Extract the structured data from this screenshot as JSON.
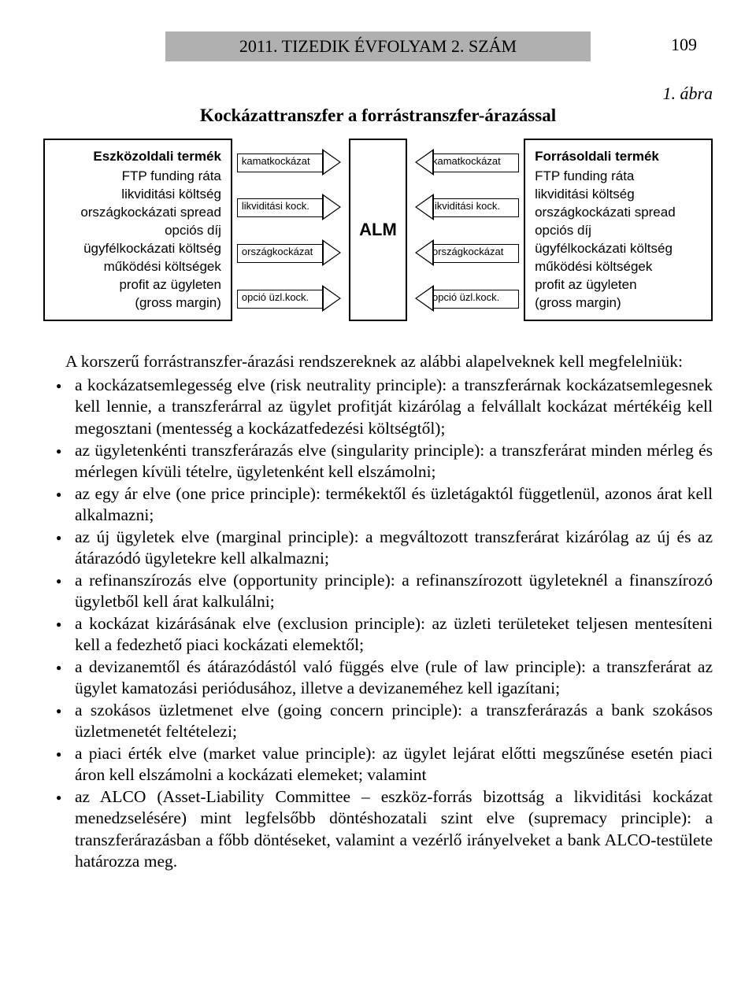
{
  "header": {
    "running": "2011. TIZEDIK ÉVFOLYAM 2. SZÁM",
    "page_number": "109"
  },
  "figure": {
    "label": "1. ábra",
    "title": "Kockázattranszfer a forrástranszfer-árazással",
    "left_box": {
      "title": "Eszközoldali termék",
      "lines": [
        "FTP funding ráta",
        "likviditási költség",
        "országkockázati spread",
        "opciós díj",
        "ügyfélkockázati költség",
        "működési költségek",
        "profit az ügyleten",
        "(gross margin)"
      ]
    },
    "arrows_left": [
      "kamatkockázat",
      "likviditási kock.",
      "országkockázat",
      "opció üzl.kock."
    ],
    "center": "ALM",
    "arrows_right": [
      "kamatkockázat",
      "likviditási kock.",
      "országkockázat",
      "opció üzl.kock."
    ],
    "right_box": {
      "title": "Forrásoldali termék",
      "lines": [
        "FTP funding ráta",
        "likviditási költség",
        "országkockázati spread",
        "opciós díj",
        "ügyfélkockázati költség",
        "működési költségek",
        "profit az ügyleten",
        "(gross margin)"
      ]
    }
  },
  "body": {
    "intro": "A korszerű forrástranszfer-árazási rendszereknek az alábbi alapelveknek kell megfelelniük:",
    "items": [
      "a kockázatsemlegesség elve (risk neutrality principle): a transzferárnak kockázatsemlegesnek kell lennie, a transzferárral az ügylet profitját kizárólag a felvállalt kockázat mértékéig kell megosztani (mentesség a kockázatfedezési költségtől);",
      "az ügyletenkénti transzferárazás elve (singularity principle): a transzferárat minden mérleg és mérlegen kívüli tételre, ügyletenként kell elszámolni;",
      "az egy ár elve (one price principle): termékektől és üzletágaktól függetlenül, azonos árat kell alkalmazni;",
      "az új ügyletek elve (marginal principle): a megváltozott transzferárat kizárólag az új és az átárazódó ügyletekre kell alkalmazni;",
      "a refinanszírozás elve (opportunity principle): a refinanszírozott ügyleteknél a finanszírozó ügyletből kell árat kalkulálni;",
      "a kockázat kizárásának elve (exclusion principle): az üzleti területeket teljesen mentesíteni kell a fedezhető piaci kockázati elemektől;",
      "a devizanemtől és átárazódástól való függés elve (rule of law principle): a transzferárat az ügylet kamatozási periódusához, illetve a devizaneméhez kell igazítani;",
      "a szokásos üzletmenet elve (going concern principle): a transzferárazás a bank szokásos üzletmenetét feltételezi;",
      "a piaci érték elve (market value principle): az ügylet lejárat előtti megszűnése esetén piaci áron kell elszámolni a kockázati elemeket; valamint",
      "az ALCO (Asset-Liability Committee – eszköz-forrás bizottság a likviditási kockázat menedzselésére) mint legfelsőbb döntéshozatali szint elve (supremacy principle): a transzferárazásban a főbb döntéseket, valamint a vezérlő irányelveket a bank ALCO-testülete határozza meg."
    ]
  }
}
